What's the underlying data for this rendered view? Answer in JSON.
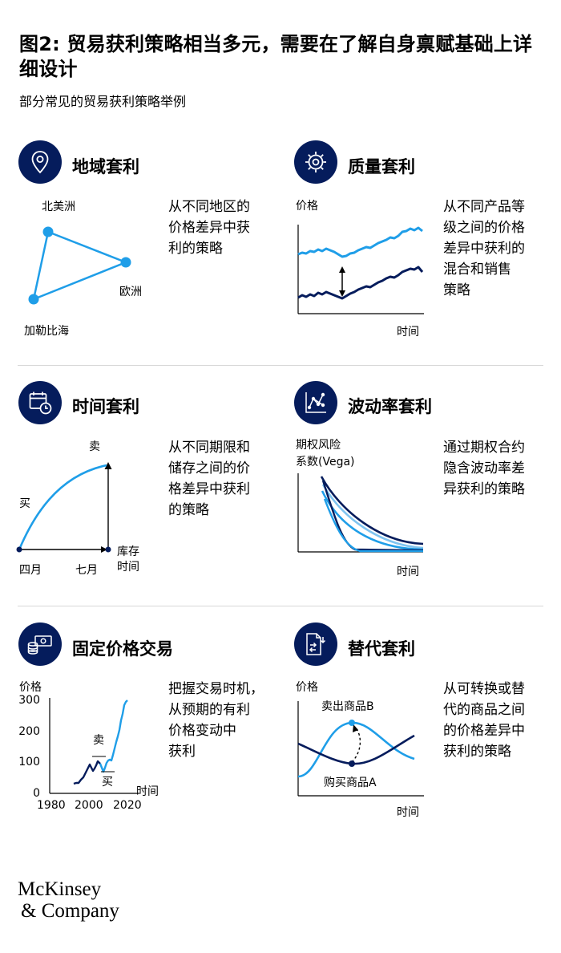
{
  "header": {
    "title": "图2: 贸易获利策略相当多元，需要在了解自身禀赋基础上详细设计",
    "subtitle": "部分常见的贸易获利策略举例"
  },
  "colors": {
    "navy": "#051c5c",
    "light_blue": "#1f9ee8",
    "pale_blue": "#7fc4f0"
  },
  "panels": {
    "geo": {
      "icon": "location-pin-icon",
      "title": "地域套利",
      "desc": [
        "从不同地区的",
        "价格差异中获",
        "利的策略"
      ],
      "labels": {
        "north_america": "北美洲",
        "europe": "欧洲",
        "caribbean": "加勒比海"
      }
    },
    "quality": {
      "icon": "gear-icon",
      "title": "质量套利",
      "desc": [
        "从不同产品等",
        "级之间的价格",
        "差异中获利的",
        "混合和销售",
        "策略"
      ],
      "y_label": "价格",
      "x_label": "时间"
    },
    "time": {
      "icon": "calendar-clock-icon",
      "title": "时间套利",
      "desc": [
        "从不同期限和",
        "储存之间的价",
        "格差异中获利",
        "的策略"
      ],
      "sell_label": "卖",
      "buy_label": "买",
      "storage_label": [
        "库存",
        "时间"
      ],
      "x_ticks": [
        "四月",
        "七月"
      ]
    },
    "volatility": {
      "icon": "network-chart-icon",
      "title": "波动率套利",
      "desc": [
        "通过期权合约",
        "隐含波动率差",
        "异获利的策略"
      ],
      "y_label": [
        "期权风险",
        "系数(Vega)"
      ],
      "x_label": "时间"
    },
    "fixed": {
      "icon": "money-stack-icon",
      "title": "固定价格交易",
      "desc": [
        "把握交易时机，",
        "从预期的有利",
        "价格变动中",
        "获利"
      ],
      "y_label": "价格",
      "x_label": "时间",
      "y_ticks": [
        "300",
        "200",
        "100",
        "0"
      ],
      "x_ticks": [
        "1980",
        "2000",
        "2020"
      ],
      "sell_label": "卖",
      "buy_label": "买"
    },
    "substitute": {
      "icon": "document-swap-icon",
      "title": "替代套利",
      "desc": [
        "从可转换或替",
        "代的商品之间",
        "的价格差异中",
        "获利的策略"
      ],
      "y_label": "价格",
      "x_label": "时间",
      "sell_label": "卖出商品B",
      "buy_label": "购买商品A"
    }
  },
  "footer": {
    "logo_line1": "McKinsey",
    "logo_line2": "& Company"
  }
}
